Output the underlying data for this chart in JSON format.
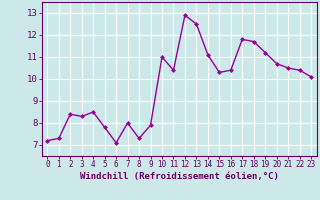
{
  "x": [
    0,
    1,
    2,
    3,
    4,
    5,
    6,
    7,
    8,
    9,
    10,
    11,
    12,
    13,
    14,
    15,
    16,
    17,
    18,
    19,
    20,
    21,
    22,
    23
  ],
  "y": [
    7.2,
    7.3,
    8.4,
    8.3,
    8.5,
    7.8,
    7.1,
    8.0,
    7.3,
    7.9,
    11.0,
    10.4,
    12.9,
    12.5,
    11.1,
    10.3,
    10.4,
    11.8,
    11.7,
    11.2,
    10.7,
    10.5,
    10.4,
    10.1
  ],
  "line_color": "#990099",
  "marker": "D",
  "marker_size": 2.0,
  "linewidth": 1.0,
  "xlabel": "Windchill (Refroidissement éolien,°C)",
  "xlabel_color": "#660066",
  "xlabel_fontsize": 6.5,
  "xtick_fontsize": 5.5,
  "ytick_fontsize": 6.5,
  "xlim": [
    -0.5,
    23.5
  ],
  "ylim": [
    6.5,
    13.5
  ],
  "yticks": [
    7,
    8,
    9,
    10,
    11,
    12,
    13
  ],
  "xticks": [
    0,
    1,
    2,
    3,
    4,
    5,
    6,
    7,
    8,
    9,
    10,
    11,
    12,
    13,
    14,
    15,
    16,
    17,
    18,
    19,
    20,
    21,
    22,
    23
  ],
  "bg_color": "#cce8e8",
  "grid_color": "#ffffff",
  "tick_color": "#660066",
  "spine_color": "#660066"
}
